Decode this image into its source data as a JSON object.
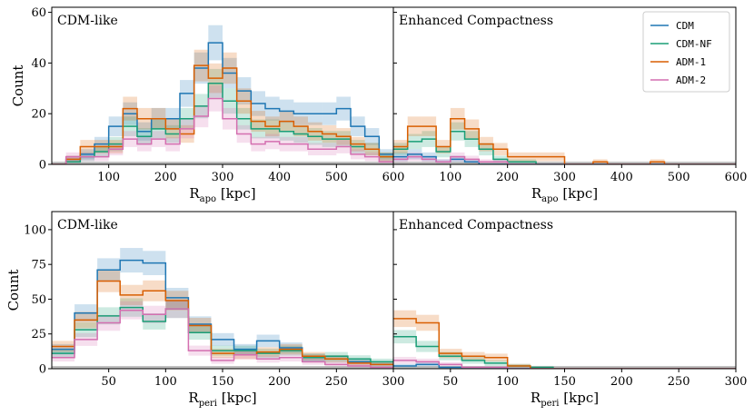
{
  "chart_data": [
    {
      "type": "histogram",
      "row": "top",
      "ylabel": "Count",
      "ylim": [
        0,
        62
      ],
      "yticks": [
        0,
        20,
        40,
        60
      ],
      "xlabel_main": "R",
      "xlabel_sub": "apo",
      "xlabel_unit": "[kpc]",
      "panels": [
        {
          "title": "CDM-like",
          "xlim": [
            0,
            600
          ],
          "xticks": [
            100,
            200,
            300,
            400,
            500,
            600
          ],
          "bin_edges": [
            0,
            25,
            50,
            75,
            100,
            125,
            150,
            175,
            200,
            225,
            250,
            275,
            300,
            325,
            350,
            375,
            400,
            425,
            450,
            475,
            500,
            525,
            550,
            575,
            600
          ],
          "series": [
            {
              "name": "CDM",
              "color": "#1f77b4",
              "values": [
                0,
                2,
                4,
                8,
                15,
                20,
                13,
                18,
                18,
                28,
                38,
                48,
                36,
                29,
                24,
                22,
                21,
                20,
                20,
                20,
                22,
                15,
                11,
                4
              ]
            },
            {
              "name": "CDM-NF",
              "color": "#1a9e77",
              "values": [
                0,
                1,
                3,
                5,
                8,
                15,
                11,
                14,
                12,
                18,
                23,
                32,
                25,
                18,
                14,
                14,
                13,
                12,
                11,
                10,
                10,
                7,
                6,
                3
              ]
            },
            {
              "name": "ADM-1",
              "color": "#d95f02",
              "values": [
                0,
                2,
                7,
                7,
                7,
                22,
                18,
                18,
                14,
                12,
                39,
                34,
                38,
                25,
                17,
                15,
                17,
                15,
                13,
                12,
                11,
                8,
                6,
                3
              ]
            },
            {
              "name": "ADM-2",
              "color": "#d46fb0",
              "values": [
                0,
                3,
                3,
                3,
                6,
                10,
                8,
                10,
                8,
                14,
                19,
                26,
                18,
                12,
                8,
                9,
                8,
                8,
                6,
                6,
                7,
                4,
                3,
                1
              ]
            }
          ]
        },
        {
          "title": "Enhanced Compactness",
          "xlim": [
            0,
            600
          ],
          "xticks": [
            100,
            200,
            300,
            400,
            500,
            600
          ],
          "bin_edges": [
            0,
            25,
            50,
            75,
            100,
            125,
            150,
            175,
            200,
            225,
            250,
            275,
            300,
            325,
            350,
            375,
            400,
            425,
            450,
            475,
            500,
            525,
            550,
            575,
            600
          ],
          "series": [
            {
              "name": "CDM",
              "color": "#1f77b4",
              "values": [
                3,
                4,
                3,
                1,
                2,
                1,
                0,
                0,
                0,
                0,
                0,
                0,
                0,
                0,
                0,
                0,
                0,
                0,
                0,
                0,
                0,
                0,
                0,
                0
              ]
            },
            {
              "name": "CDM-NF",
              "color": "#1a9e77",
              "values": [
                6,
                9,
                10,
                5,
                13,
                10,
                6,
                2,
                1,
                1,
                0,
                0,
                0,
                0,
                0,
                0,
                0,
                0,
                0,
                0,
                0,
                0,
                0,
                0
              ]
            },
            {
              "name": "ADM-1",
              "color": "#d95f02",
              "values": [
                7,
                15,
                15,
                7,
                18,
                14,
                8,
                6,
                3,
                3,
                3,
                3,
                0,
                0,
                1,
                0,
                0,
                0,
                1,
                0,
                0,
                0,
                0,
                0
              ]
            },
            {
              "name": "ADM-2",
              "color": "#d46fb0",
              "values": [
                2,
                3,
                2,
                1,
                3,
                2,
                1,
                1,
                0,
                0,
                0,
                0,
                0,
                0,
                0,
                0,
                0,
                0,
                0,
                0,
                0,
                0,
                0,
                0
              ]
            }
          ]
        }
      ],
      "legend": {
        "location": "top-right",
        "entries": [
          "CDM",
          "CDM-NF",
          "ADM-1",
          "ADM-2"
        ]
      }
    },
    {
      "type": "histogram",
      "row": "bottom",
      "ylabel": "Count",
      "ylim": [
        0,
        113
      ],
      "yticks": [
        0,
        25,
        50,
        75,
        100
      ],
      "xlabel_main": "R",
      "xlabel_sub": "peri",
      "xlabel_unit": "[kpc]",
      "panels": [
        {
          "title": "CDM-like",
          "xlim": [
            0,
            300
          ],
          "xticks": [
            50,
            100,
            150,
            200,
            250,
            300
          ],
          "bin_edges": [
            0,
            20,
            40,
            60,
            80,
            100,
            120,
            140,
            160,
            180,
            200,
            220,
            240,
            260,
            280,
            300
          ],
          "series": [
            {
              "name": "CDM",
              "color": "#1f77b4",
              "values": [
                14,
                40,
                71,
                78,
                76,
                51,
                32,
                21,
                14,
                20,
                15,
                8,
                7,
                5,
                3
              ]
            },
            {
              "name": "CDM-NF",
              "color": "#1a9e77",
              "values": [
                11,
                28,
                38,
                44,
                34,
                43,
                26,
                13,
                13,
                11,
                13,
                8,
                9,
                7,
                5
              ]
            },
            {
              "name": "ADM-1",
              "color": "#d95f02",
              "values": [
                16,
                35,
                63,
                53,
                56,
                49,
                31,
                11,
                10,
                12,
                14,
                9,
                7,
                4,
                3
              ]
            },
            {
              "name": "ADM-2",
              "color": "#d46fb0",
              "values": [
                8,
                21,
                33,
                42,
                39,
                43,
                13,
                6,
                10,
                7,
                8,
                5,
                3,
                2,
                1
              ]
            }
          ]
        },
        {
          "title": "Enhanced Compactness",
          "xlim": [
            0,
            300
          ],
          "xticks": [
            50,
            100,
            150,
            200,
            250,
            300
          ],
          "bin_edges": [
            0,
            20,
            40,
            60,
            80,
            100,
            120,
            140,
            160,
            180,
            200,
            220,
            240,
            260,
            280,
            300
          ],
          "series": [
            {
              "name": "CDM",
              "color": "#1f77b4",
              "values": [
                2,
                3,
                1,
                0,
                0,
                0,
                0,
                0,
                0,
                0,
                0,
                0,
                0,
                0,
                0
              ]
            },
            {
              "name": "CDM-NF",
              "color": "#1a9e77",
              "values": [
                23,
                16,
                9,
                6,
                4,
                2,
                1,
                0,
                0,
                0,
                0,
                0,
                0,
                0,
                0
              ]
            },
            {
              "name": "ADM-1",
              "color": "#d95f02",
              "values": [
                36,
                33,
                11,
                9,
                8,
                2,
                0,
                0,
                0,
                0,
                0,
                0,
                0,
                0,
                0
              ]
            },
            {
              "name": "ADM-2",
              "color": "#d46fb0",
              "values": [
                6,
                5,
                3,
                1,
                1,
                0,
                0,
                0,
                0,
                0,
                0,
                0,
                0,
                0,
                0
              ]
            }
          ]
        }
      ]
    }
  ]
}
